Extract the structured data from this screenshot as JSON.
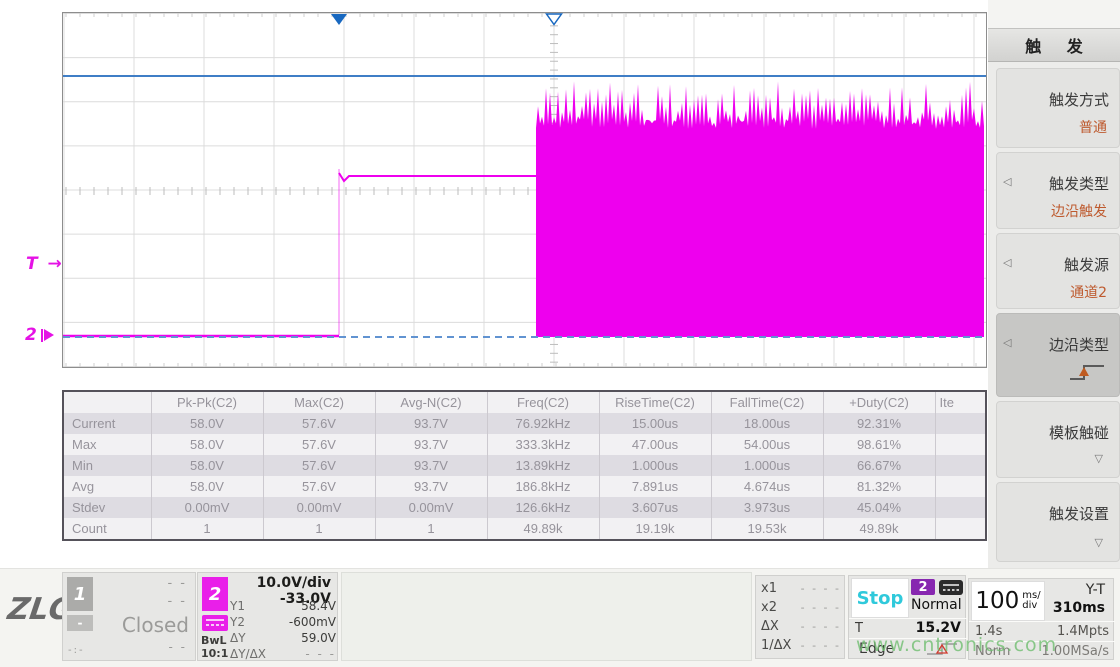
{
  "plot": {
    "trigger_level_marker": "T →",
    "channel_marker": "2",
    "colors": {
      "trace": "#ee00ee",
      "blue_line": "#3f7ec6",
      "dashed_ref": "#6193d1",
      "marker_blue": "#1868c0",
      "grid": "#dcdcdc"
    }
  },
  "measurements": {
    "columns": [
      "",
      "Pk-Pk(C2)",
      "Max(C2)",
      "Avg-N(C2)",
      "Freq(C2)",
      "RiseTime(C2)",
      "FallTime(C2)",
      "+Duty(C2)",
      "Ite"
    ],
    "rows": [
      {
        "label": "Current",
        "values": [
          "58.0V",
          "57.6V",
          "93.7V",
          "76.92kHz",
          "15.00us",
          "18.00us",
          "92.31%",
          ""
        ]
      },
      {
        "label": "Max",
        "values": [
          "58.0V",
          "57.6V",
          "93.7V",
          "333.3kHz",
          "47.00us",
          "54.00us",
          "98.61%",
          ""
        ]
      },
      {
        "label": "Min",
        "values": [
          "58.0V",
          "57.6V",
          "93.7V",
          "13.89kHz",
          "1.000us",
          "1.000us",
          "66.67%",
          ""
        ]
      },
      {
        "label": "Avg",
        "values": [
          "58.0V",
          "57.6V",
          "93.7V",
          "186.8kHz",
          "7.891us",
          "4.674us",
          "81.32%",
          ""
        ]
      },
      {
        "label": "Stdev",
        "values": [
          "0.00mV",
          "0.00mV",
          "0.00mV",
          "126.6kHz",
          "3.607us",
          "3.973us",
          "45.04%",
          ""
        ]
      },
      {
        "label": "Count",
        "values": [
          "1",
          "1",
          "1",
          "49.89k",
          "19.19k",
          "19.53k",
          "49.89k",
          ""
        ]
      }
    ]
  },
  "sidebar": {
    "title": "触 发",
    "buttons": [
      {
        "label": "触发方式",
        "value": "普通"
      },
      {
        "label": "触发类型",
        "value": "边沿触发"
      },
      {
        "label": "触发源",
        "value": "通道2"
      },
      {
        "label": "边沿类型",
        "value": ""
      },
      {
        "label": "模板触碰",
        "value": ""
      },
      {
        "label": "触发设置",
        "value": ""
      }
    ]
  },
  "bottom": {
    "logo": "ZLG",
    "ch1": {
      "number": "1",
      "value_top": "- -",
      "value_mid": "- -",
      "status": "Closed",
      "badge": "-",
      "footer_left": "-:-",
      "footer_right": "- -"
    },
    "ch2": {
      "number": "2",
      "scale": "10.0V/div",
      "offset": "-33.0V",
      "bwl": "BwL",
      "probe": "10:1",
      "cursor_rows": [
        {
          "label": "Y1",
          "value": "58.4V"
        },
        {
          "label": "Y2",
          "value": "-600mV"
        },
        {
          "label": "ΔY",
          "value": "59.0V"
        },
        {
          "label": "ΔY/ΔX",
          "value": "- - -"
        }
      ]
    },
    "cursors": [
      {
        "label": "x1",
        "value": "- - - -"
      },
      {
        "label": "x2",
        "value": "- - - -"
      },
      {
        "label": "ΔX",
        "value": "- - - -"
      },
      {
        "label": "1/ΔX",
        "value": "- - - -"
      }
    ],
    "trigger": {
      "run_state": "Stop",
      "channel": "2",
      "mode": "Normal",
      "t_label": "T",
      "level": "15.2V",
      "type": "Edge"
    },
    "timebase": {
      "scale": "100",
      "unit_top": "ms/",
      "unit_bottom": "div",
      "mode": "Y-T",
      "window": "310ms",
      "total_time": "1.4s",
      "points": "1.4Mpts",
      "acq_mode": "Norm",
      "sample_rate": "1.00MSa/s"
    }
  },
  "watermark": "www.cntronics.com"
}
